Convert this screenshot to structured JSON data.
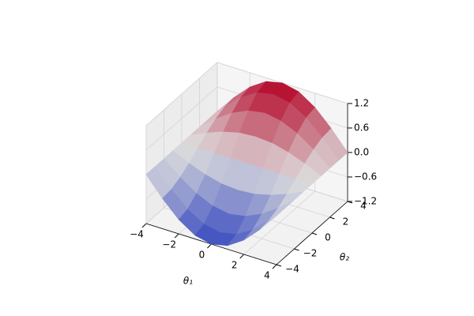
{
  "chart_data": {
    "type": "surface",
    "xlabel": "θ₁",
    "ylabel": "θ₂",
    "x": [
      -4,
      -3,
      -2,
      -1,
      0,
      1,
      2,
      3,
      4
    ],
    "y": [
      -4,
      -3,
      -2,
      -1,
      0,
      1,
      2,
      3,
      4
    ],
    "z": [
      [
        0,
        -0.46,
        -0.85,
        -1.11,
        -1.2,
        -1.11,
        -0.85,
        -0.46,
        0
      ],
      [
        0,
        -0.43,
        -0.79,
        -1.03,
        -1.11,
        -1.03,
        -0.79,
        -0.43,
        0
      ],
      [
        0,
        -0.33,
        -0.6,
        -0.78,
        -0.85,
        -0.78,
        -0.6,
        -0.33,
        0
      ],
      [
        0,
        -0.18,
        -0.33,
        -0.43,
        -0.46,
        -0.43,
        -0.33,
        -0.18,
        0
      ],
      [
        0,
        0,
        0,
        0,
        0,
        0,
        0,
        0,
        0
      ],
      [
        0,
        0.18,
        0.33,
        0.43,
        0.46,
        0.43,
        0.33,
        0.18,
        0
      ],
      [
        0,
        0.33,
        0.6,
        0.78,
        0.85,
        0.78,
        0.6,
        0.33,
        0
      ],
      [
        0,
        0.43,
        0.79,
        1.03,
        1.11,
        1.03,
        0.79,
        0.43,
        0
      ],
      [
        0,
        0.46,
        0.85,
        1.11,
        1.2,
        1.11,
        0.85,
        0.46,
        0
      ]
    ],
    "colormap": "coolwarm",
    "xlim": [
      -4,
      4
    ],
    "ylim": [
      -4,
      4
    ],
    "zlim": [
      -1.2,
      1.2
    ],
    "xticks": [
      {
        "value": -4,
        "label": "−4"
      },
      {
        "value": -2,
        "label": "−2"
      },
      0,
      2,
      4
    ],
    "yticks": [
      {
        "value": -4,
        "label": "−4"
      },
      {
        "value": -2,
        "label": "−2"
      },
      0,
      2,
      4
    ],
    "zticks": [
      {
        "value": -1.2,
        "label": "−1.2"
      },
      {
        "value": -0.6,
        "label": "−0.6"
      },
      {
        "value": 0,
        "label": "0.0"
      },
      0.6,
      1.2
    ],
    "grid": true
  }
}
